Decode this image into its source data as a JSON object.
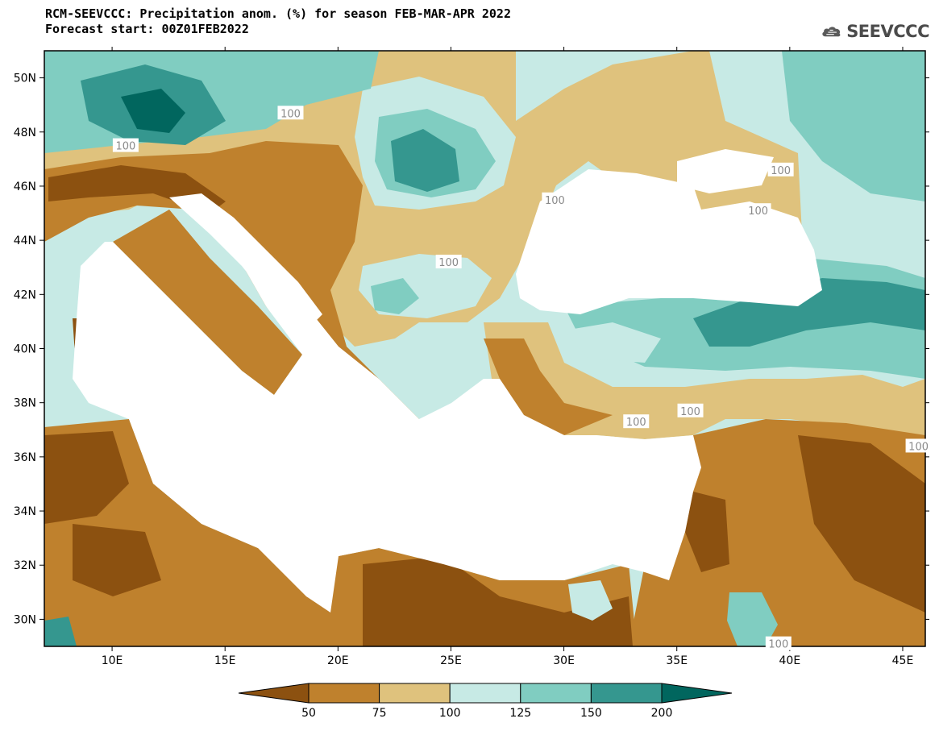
{
  "title": {
    "line1": "RCM-SEEVCCC: Precipitation anom. (%) for season FEB-MAR-APR 2022",
    "line2": "Forecast start: 00Z01FEB2022"
  },
  "logo": {
    "text": "SEEVCCC",
    "icon": "cloud-logo-icon"
  },
  "map": {
    "lon_range": [
      7,
      46
    ],
    "lat_range": [
      29,
      51
    ],
    "lon_ticks": [
      10,
      15,
      20,
      25,
      30,
      35,
      40,
      45
    ],
    "lon_tick_labels": [
      "10E",
      "15E",
      "20E",
      "25E",
      "30E",
      "35E",
      "40E",
      "45E"
    ],
    "lat_ticks": [
      30,
      32,
      34,
      36,
      38,
      40,
      42,
      44,
      46,
      48,
      50
    ],
    "lat_tick_labels": [
      "30N",
      "32N",
      "34N",
      "36N",
      "38N",
      "40N",
      "42N",
      "44N",
      "46N",
      "48N",
      "50N"
    ],
    "contour_labels": [
      {
        "text": "100",
        "lon": 17.9,
        "lat": 48.7
      },
      {
        "text": "100",
        "lon": 10.6,
        "lat": 47.5
      },
      {
        "text": "100",
        "lon": 29.6,
        "lat": 45.5
      },
      {
        "text": "100",
        "lon": 24.9,
        "lat": 43.2
      },
      {
        "text": "100",
        "lon": 39.6,
        "lat": 46.6
      },
      {
        "text": "100",
        "lon": 38.6,
        "lat": 45.1
      },
      {
        "text": "100",
        "lon": 33.2,
        "lat": 37.3
      },
      {
        "text": "100",
        "lon": 35.6,
        "lat": 37.7
      },
      {
        "text": "100",
        "lon": 45.7,
        "lat": 36.4
      },
      {
        "text": "100",
        "lon": 39.5,
        "lat": 29.1
      }
    ]
  },
  "colorbar": {
    "labels": [
      "50",
      "75",
      "100",
      "125",
      "150",
      "200"
    ],
    "colors": {
      "lt50": "#8c5110",
      "c50_75": "#bf812d",
      "c75_100": "#dfc27d",
      "c100_125": "#c7eae5",
      "c125_150": "#80cdc1",
      "c150_200": "#35978f",
      "gt200": "#01665e"
    }
  }
}
